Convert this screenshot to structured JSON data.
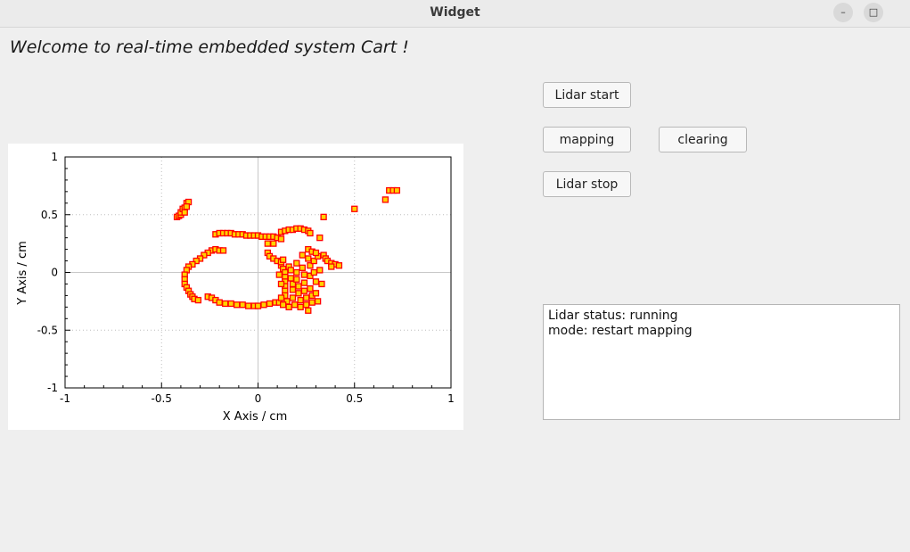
{
  "window": {
    "title": "Widget",
    "minimize_glyph": "–",
    "maximize_glyph": "□",
    "close_glyph": "✕"
  },
  "welcome_text": "Welcome to real-time embedded system Cart !",
  "buttons": {
    "lidar_start": "Lidar start",
    "mapping": "mapping",
    "clearing": "clearing",
    "lidar_stop": "Lidar stop"
  },
  "status": {
    "line1": "Lidar status: running",
    "line2": "mode:  restart mapping"
  },
  "chart_data": {
    "type": "scatter",
    "title": "",
    "xlabel": "X Axis / cm",
    "ylabel": "Y Axis / cm",
    "xlim": [
      -1,
      1
    ],
    "ylim": [
      -1,
      1
    ],
    "xticks": [
      "-1",
      "-0.5",
      "0",
      "0.5",
      "1"
    ],
    "yticks": [
      "1",
      "0.5",
      "0",
      "-0.5",
      "-1"
    ],
    "grid": true,
    "marker_fill": "#ffd200",
    "marker_edge": "#ff0000",
    "points": [
      [
        -0.42,
        0.48
      ],
      [
        -0.41,
        0.49
      ],
      [
        -0.4,
        0.5
      ],
      [
        -0.4,
        0.52
      ],
      [
        -0.39,
        0.55
      ],
      [
        -0.38,
        0.56
      ],
      [
        -0.37,
        0.6
      ],
      [
        -0.36,
        0.61
      ],
      [
        -0.37,
        0.57
      ],
      [
        -0.38,
        0.52
      ],
      [
        -0.22,
        0.33
      ],
      [
        -0.2,
        0.34
      ],
      [
        -0.18,
        0.34
      ],
      [
        -0.16,
        0.34
      ],
      [
        -0.14,
        0.34
      ],
      [
        -0.12,
        0.33
      ],
      [
        -0.1,
        0.33
      ],
      [
        -0.08,
        0.33
      ],
      [
        -0.06,
        0.32
      ],
      [
        -0.04,
        0.32
      ],
      [
        -0.02,
        0.32
      ],
      [
        0.0,
        0.32
      ],
      [
        0.02,
        0.31
      ],
      [
        0.04,
        0.31
      ],
      [
        0.06,
        0.31
      ],
      [
        0.08,
        0.31
      ],
      [
        0.12,
        0.35
      ],
      [
        0.14,
        0.36
      ],
      [
        0.16,
        0.37
      ],
      [
        0.18,
        0.37
      ],
      [
        0.2,
        0.38
      ],
      [
        0.22,
        0.38
      ],
      [
        0.24,
        0.37
      ],
      [
        0.26,
        0.36
      ],
      [
        0.27,
        0.34
      ],
      [
        0.32,
        0.3
      ],
      [
        0.34,
        0.48
      ],
      [
        0.1,
        0.3
      ],
      [
        0.12,
        0.29
      ],
      [
        0.05,
        0.25
      ],
      [
        0.08,
        0.25
      ],
      [
        -0.24,
        0.19
      ],
      [
        -0.22,
        0.2
      ],
      [
        -0.2,
        0.19
      ],
      [
        -0.18,
        0.19
      ],
      [
        -0.26,
        0.17
      ],
      [
        -0.28,
        0.15
      ],
      [
        -0.3,
        0.12
      ],
      [
        -0.32,
        0.1
      ],
      [
        -0.34,
        0.07
      ],
      [
        -0.36,
        0.05
      ],
      [
        -0.37,
        0.02
      ],
      [
        -0.38,
        -0.02
      ],
      [
        -0.38,
        -0.06
      ],
      [
        -0.38,
        -0.1
      ],
      [
        -0.37,
        -0.13
      ],
      [
        -0.36,
        -0.16
      ],
      [
        -0.35,
        -0.19
      ],
      [
        -0.34,
        -0.21
      ],
      [
        -0.33,
        -0.23
      ],
      [
        -0.31,
        -0.24
      ],
      [
        -0.26,
        -0.21
      ],
      [
        -0.24,
        -0.22
      ],
      [
        -0.22,
        -0.24
      ],
      [
        -0.2,
        -0.26
      ],
      [
        -0.17,
        -0.27
      ],
      [
        -0.14,
        -0.27
      ],
      [
        -0.11,
        -0.28
      ],
      [
        -0.08,
        -0.28
      ],
      [
        -0.05,
        -0.29
      ],
      [
        -0.02,
        -0.29
      ],
      [
        0.0,
        -0.29
      ],
      [
        0.03,
        -0.28
      ],
      [
        0.06,
        -0.27
      ],
      [
        0.09,
        -0.26
      ],
      [
        0.11,
        -0.26
      ],
      [
        0.05,
        0.17
      ],
      [
        0.06,
        0.14
      ],
      [
        0.08,
        0.12
      ],
      [
        0.1,
        0.1
      ],
      [
        0.12,
        0.06
      ],
      [
        0.13,
        0.03
      ],
      [
        0.14,
        0.0
      ],
      [
        0.14,
        -0.04
      ],
      [
        0.14,
        -0.08
      ],
      [
        0.14,
        -0.12
      ],
      [
        0.14,
        -0.16
      ],
      [
        0.14,
        -0.2
      ],
      [
        0.15,
        -0.25
      ],
      [
        0.16,
        -0.3
      ],
      [
        0.16,
        0.05
      ],
      [
        0.17,
        0.02
      ],
      [
        0.17,
        -0.05
      ],
      [
        0.18,
        -0.1
      ],
      [
        0.18,
        -0.15
      ],
      [
        0.18,
        -0.22
      ],
      [
        0.19,
        -0.28
      ],
      [
        0.2,
        0.08
      ],
      [
        0.2,
        0.0
      ],
      [
        0.2,
        -0.06
      ],
      [
        0.21,
        -0.12
      ],
      [
        0.21,
        -0.18
      ],
      [
        0.22,
        -0.24
      ],
      [
        0.22,
        -0.3
      ],
      [
        0.23,
        0.15
      ],
      [
        0.23,
        0.04
      ],
      [
        0.24,
        -0.02
      ],
      [
        0.24,
        -0.09
      ],
      [
        0.24,
        -0.16
      ],
      [
        0.25,
        -0.22
      ],
      [
        0.25,
        -0.28
      ],
      [
        0.26,
        -0.33
      ],
      [
        0.26,
        0.12
      ],
      [
        0.27,
        0.06
      ],
      [
        0.27,
        -0.03
      ],
      [
        0.27,
        -0.14
      ],
      [
        0.28,
        -0.2
      ],
      [
        0.28,
        -0.26
      ],
      [
        0.29,
        0.1
      ],
      [
        0.29,
        0.0
      ],
      [
        0.3,
        -0.08
      ],
      [
        0.3,
        -0.18
      ],
      [
        0.31,
        -0.25
      ],
      [
        0.31,
        0.14
      ],
      [
        0.32,
        0.02
      ],
      [
        0.33,
        -0.1
      ],
      [
        0.34,
        0.15
      ],
      [
        0.35,
        0.12
      ],
      [
        0.36,
        0.1
      ],
      [
        0.38,
        0.08
      ],
      [
        0.4,
        0.07
      ],
      [
        0.42,
        0.06
      ],
      [
        0.38,
        0.05
      ],
      [
        0.12,
        0.09
      ],
      [
        0.13,
        0.11
      ],
      [
        0.11,
        -0.02
      ],
      [
        0.12,
        -0.1
      ],
      [
        0.12,
        -0.22
      ],
      [
        0.13,
        -0.28
      ],
      [
        0.26,
        0.2
      ],
      [
        0.28,
        0.18
      ],
      [
        0.3,
        0.17
      ],
      [
        0.5,
        0.55
      ],
      [
        0.66,
        0.63
      ],
      [
        0.68,
        0.71
      ],
      [
        0.7,
        0.71
      ],
      [
        0.72,
        0.71
      ]
    ]
  }
}
